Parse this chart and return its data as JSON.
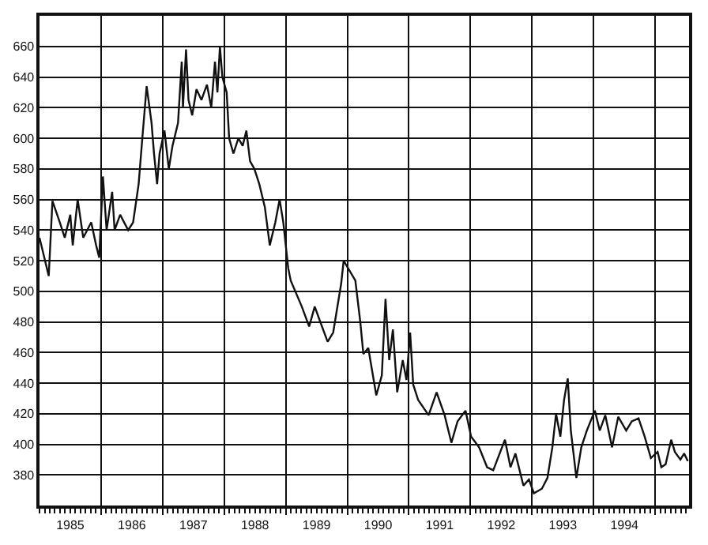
{
  "chart_data": {
    "type": "line",
    "x": [
      1985.0,
      1985.15,
      1985.21,
      1985.33,
      1985.41,
      1985.5,
      1985.54,
      1985.62,
      1985.71,
      1985.84,
      1985.92,
      1985.97,
      1986.03,
      1986.09,
      1986.18,
      1986.22,
      1986.31,
      1986.44,
      1986.52,
      1986.61,
      1986.67,
      1986.74,
      1986.82,
      1986.86,
      1986.91,
      1986.95,
      1987.03,
      1987.1,
      1987.16,
      1987.25,
      1987.31,
      1987.33,
      1987.38,
      1987.42,
      1987.48,
      1987.55,
      1987.63,
      1987.72,
      1987.79,
      1987.85,
      1987.89,
      1987.93,
      1987.97,
      1988.04,
      1988.08,
      1988.15,
      1988.23,
      1988.3,
      1988.36,
      1988.42,
      1988.49,
      1988.57,
      1988.66,
      1988.74,
      1988.83,
      1988.9,
      1988.96,
      1989.04,
      1989.08,
      1989.26,
      1989.38,
      1989.47,
      1989.56,
      1989.68,
      1989.77,
      1989.9,
      1989.94,
      1990.13,
      1990.21,
      1990.26,
      1990.34,
      1990.47,
      1990.56,
      1990.62,
      1990.68,
      1990.74,
      1990.81,
      1990.9,
      1990.96,
      1991.02,
      1991.07,
      1991.15,
      1991.32,
      1991.45,
      1991.58,
      1991.69,
      1991.79,
      1991.92,
      1992.01,
      1992.14,
      1992.27,
      1992.37,
      1992.56,
      1992.65,
      1992.73,
      1992.86,
      1992.95,
      1993.03,
      1993.16,
      1993.25,
      1993.33,
      1993.39,
      1993.46,
      1993.52,
      1993.58,
      1993.63,
      1993.72,
      1993.8,
      1993.89,
      1994.02,
      1994.1,
      1994.19,
      1994.3,
      1994.4,
      1994.53,
      1994.62,
      1994.73,
      1994.83,
      1994.93,
      1995.04,
      1995.1,
      1995.17,
      1995.26,
      1995.32,
      1995.41,
      1995.47,
      1995.53
    ],
    "series": [
      {
        "color": "#111111",
        "values": [
          535,
          510,
          559,
          545,
          535,
          550,
          530,
          560,
          535,
          545,
          530,
          522,
          575,
          540,
          565,
          540,
          550,
          540,
          545,
          570,
          600,
          634,
          610,
          590,
          570,
          590,
          605,
          580,
          595,
          610,
          650,
          620,
          658,
          625,
          615,
          632,
          625,
          635,
          620,
          650,
          630,
          660,
          640,
          630,
          600,
          590,
          600,
          595,
          605,
          585,
          580,
          570,
          555,
          530,
          545,
          560,
          545,
          515,
          507,
          490,
          477,
          490,
          480,
          467,
          473,
          505,
          520,
          507,
          480,
          459,
          463,
          432,
          445,
          495,
          455,
          475,
          434,
          455,
          442,
          473,
          439,
          429,
          419,
          434,
          419,
          401,
          415,
          422,
          405,
          398,
          385,
          383,
          403,
          385,
          394,
          373,
          377,
          368,
          371,
          378,
          398,
          420,
          405,
          429,
          443,
          409,
          378,
          398,
          409,
          422,
          409,
          419,
          398,
          418,
          409,
          415,
          417,
          405,
          391,
          395,
          385,
          387,
          403,
          395,
          390,
          394,
          389
        ]
      }
    ],
    "xlim": [
      1985.0,
      1995.55
    ],
    "xticks": [
      {
        "value": 1986,
        "label": null
      },
      {
        "value": 1987,
        "label": null
      },
      {
        "value": 1988,
        "label": null
      },
      {
        "value": 1989,
        "label": null
      },
      {
        "value": 1990,
        "label": null
      },
      {
        "value": 1991,
        "label": null
      },
      {
        "value": 1992,
        "label": null
      },
      {
        "value": 1993,
        "label": null
      },
      {
        "value": 1994,
        "label": null
      },
      {
        "value": 1995,
        "label": null
      },
      {
        "value": 1985.5,
        "label": "1985"
      },
      {
        "value": 1986.5,
        "label": "1986"
      },
      {
        "value": 1987.5,
        "label": "1987"
      },
      {
        "value": 1988.5,
        "label": "1988"
      },
      {
        "value": 1989.5,
        "label": "1989"
      },
      {
        "value": 1990.5,
        "label": "1990"
      },
      {
        "value": 1991.5,
        "label": "1991"
      },
      {
        "value": 1992.5,
        "label": "1992"
      },
      {
        "value": 1993.5,
        "label": "1993"
      },
      {
        "value": 1994.5,
        "label": "1994"
      }
    ],
    "ylim": [
      360,
      680
    ],
    "yticks": [
      380,
      400,
      420,
      440,
      460,
      480,
      500,
      520,
      540,
      560,
      580,
      600,
      620,
      640,
      660
    ],
    "grid": true
  }
}
